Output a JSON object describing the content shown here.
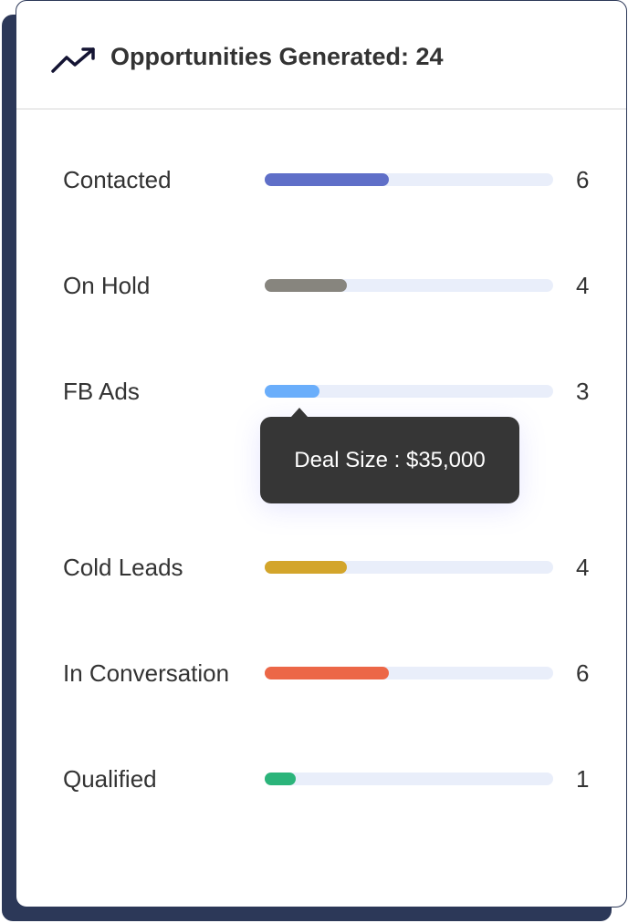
{
  "header": {
    "title": "Opportunities Generated: 24",
    "icon": "trending-up-icon"
  },
  "rows": [
    {
      "label": "Contacted",
      "count": "6",
      "fill": 0.43,
      "color": "#5f6fc8"
    },
    {
      "label": "On Hold",
      "count": "4",
      "fill": 0.285,
      "color": "#87857e"
    },
    {
      "label": "FB Ads",
      "count": "3",
      "fill": 0.19,
      "color": "#6aaefb"
    },
    {
      "label": "Cold Leads",
      "count": "4",
      "fill": 0.285,
      "color": "#d3a52b"
    },
    {
      "label": "In Conversation",
      "count": "6",
      "fill": 0.43,
      "color": "#ec6747"
    },
    {
      "label": "Qualified",
      "count": "1",
      "fill": 0.107,
      "color": "#2bb47a"
    }
  ],
  "tooltip": {
    "text": "Deal Size : $35,000"
  }
}
